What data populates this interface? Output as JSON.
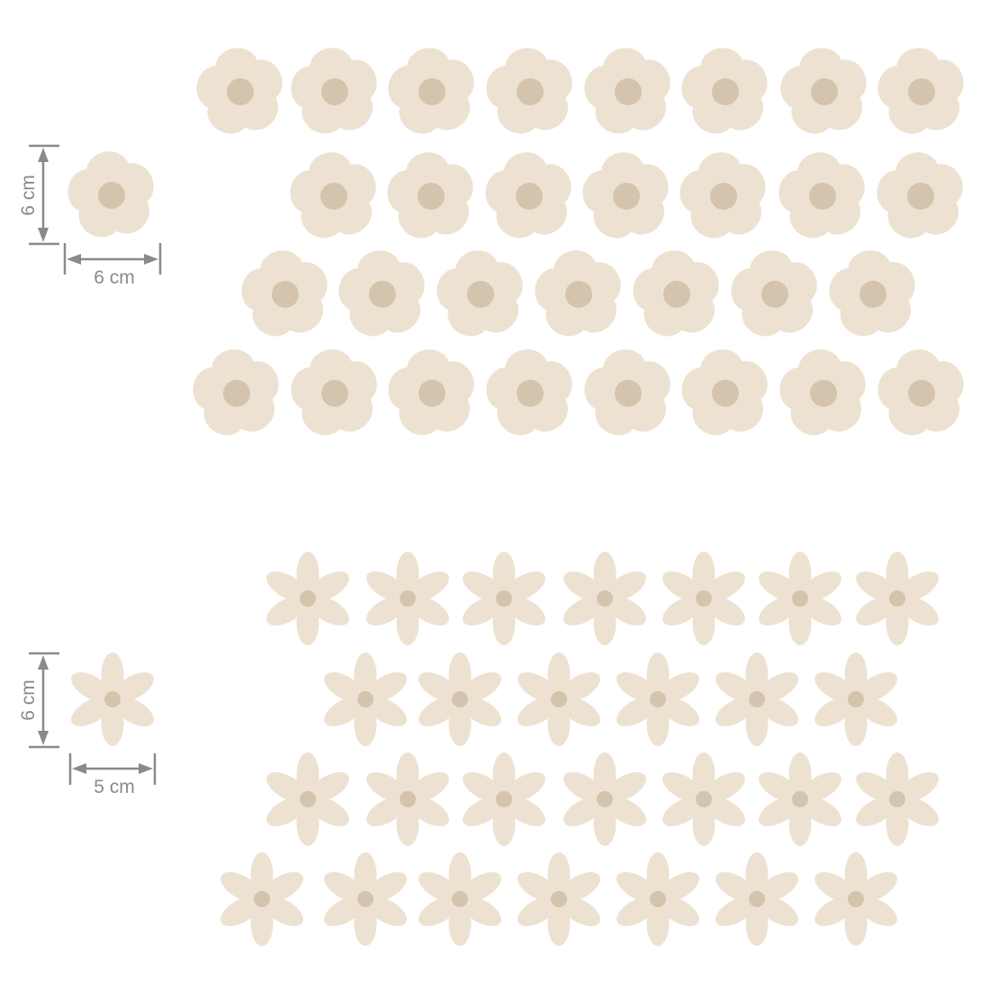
{
  "colors": {
    "petal": "#ede2d2",
    "center": "#d4c4ad",
    "dimension_line": "#8a8a8a",
    "background": "#ffffff"
  },
  "large_flowers": {
    "shape": "five-petal round flower",
    "height_label": "6 cm",
    "width_label": "6 cm"
  },
  "small_flowers": {
    "shape": "six-petal slender flower",
    "height_label": "6 cm",
    "width_label": "5 cm"
  }
}
